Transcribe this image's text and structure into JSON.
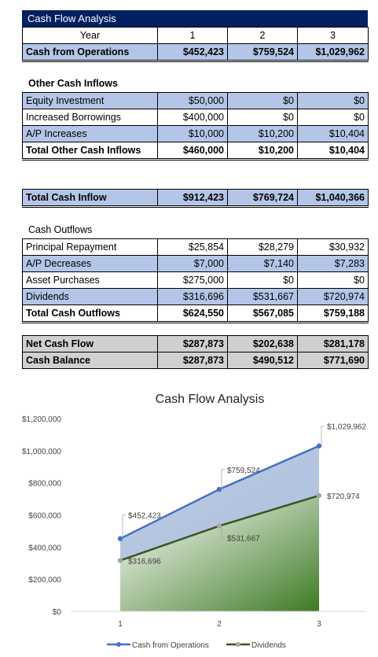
{
  "sheet_title": "Cash Flow Analysis",
  "header": {
    "label": "Year",
    "years": [
      "1",
      "2",
      "3"
    ]
  },
  "operations": {
    "label": "Cash from Operations",
    "values": [
      "$452,423",
      "$759,524",
      "$1,029,962"
    ]
  },
  "other_inflows": {
    "title": "Other Cash Inflows",
    "rows": [
      {
        "label": "Equity Investment",
        "values": [
          "$50,000",
          "$0",
          "$0"
        ]
      },
      {
        "label": "Increased Borrowings",
        "values": [
          "$400,000",
          "$0",
          "$0"
        ]
      },
      {
        "label": "A/P Increases",
        "values": [
          "$10,000",
          "$10,200",
          "$10,404"
        ]
      }
    ],
    "total": {
      "label": "Total Other Cash Inflows",
      "values": [
        "$460,000",
        "$10,200",
        "$10,404"
      ]
    }
  },
  "total_inflow": {
    "label": "Total Cash Inflow",
    "values": [
      "$912,423",
      "$769,724",
      "$1,040,366"
    ]
  },
  "outflows": {
    "title": "Cash Outflows",
    "rows": [
      {
        "label": "Principal Repayment",
        "values": [
          "$25,854",
          "$28,279",
          "$30,932"
        ]
      },
      {
        "label": "A/P Decreases",
        "values": [
          "$7,000",
          "$7,140",
          "$7,283"
        ]
      },
      {
        "label": "Asset Purchases",
        "values": [
          "$275,000",
          "$0",
          "$0"
        ]
      },
      {
        "label": "Dividends",
        "values": [
          "$316,696",
          "$531,667",
          "$720,974"
        ]
      }
    ],
    "total": {
      "label": "Total Cash Outflows",
      "values": [
        "$624,550",
        "$567,085",
        "$759,188"
      ]
    }
  },
  "net": {
    "rows": [
      {
        "label": "Net Cash Flow",
        "values": [
          "$287,873",
          "$202,638",
          "$281,178"
        ]
      },
      {
        "label": "Cash Balance",
        "values": [
          "$287,873",
          "$490,512",
          "$771,690"
        ]
      }
    ]
  },
  "colors": {
    "title_bar": "#002060",
    "row_highlight": "#b4c6e7",
    "summary_row": "#d0d0d0",
    "series_operations": "#4472c4",
    "series_dividends": "#375623",
    "label_marker": "#a5a5a5"
  },
  "chart_data": {
    "type": "area",
    "title": "Cash Flow Analysis",
    "categories": [
      "1",
      "2",
      "3"
    ],
    "ylim": [
      0,
      1200000
    ],
    "yticks": [
      0,
      200000,
      400000,
      600000,
      800000,
      1000000,
      1200000
    ],
    "ytick_labels": [
      "$0",
      "$200,000",
      "$400,000",
      "$600,000",
      "$800,000",
      "$1,000,000",
      "$1,200,000"
    ],
    "grid": false,
    "legend": "bottom",
    "series": [
      {
        "name": "Cash from Operations",
        "values": [
          452423,
          759524,
          1029962
        ],
        "labels": [
          "$452,423",
          "$759,524",
          "$1,029,962"
        ]
      },
      {
        "name": "Dividends",
        "values": [
          316696,
          531667,
          720974
        ],
        "labels": [
          "$316,696",
          "$531,667",
          "$720,974"
        ]
      }
    ]
  }
}
